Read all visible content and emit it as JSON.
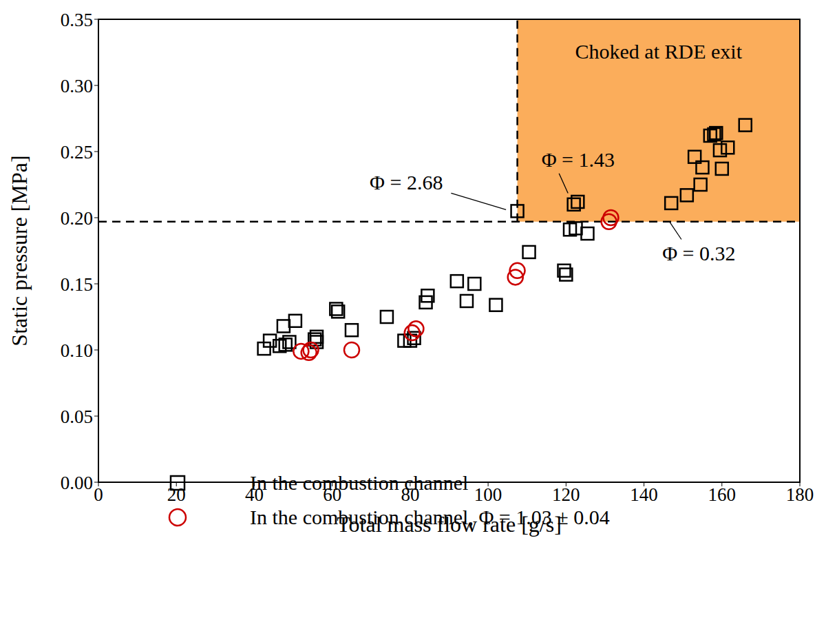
{
  "chart_data": {
    "type": "scatter",
    "x_label": "Total mass flow rate [g/s]",
    "y_label": "Static pressure [MPa]",
    "xlim": [
      0,
      180
    ],
    "xticks": [
      0,
      20,
      40,
      60,
      80,
      100,
      120,
      140,
      160,
      180
    ],
    "ylim": [
      0,
      0.35
    ],
    "yticks": [
      {
        "value": 0,
        "label": "0.00"
      },
      0.05,
      {
        "value": 0.1,
        "label": "0.10"
      },
      0.15,
      {
        "value": 0.2,
        "label": "0.20"
      },
      0.25,
      {
        "value": 0.3,
        "label": "0.30"
      },
      0.35
    ],
    "grid": false,
    "legend": "lower left",
    "series": [
      {
        "name": "In the combustion channel",
        "color": "#000000",
        "marker": "square",
        "x": [
          42.5,
          44,
          46.5,
          47.5,
          48,
          49,
          50.5,
          55.5,
          56,
          56,
          61,
          61.5,
          65,
          74,
          78.5,
          80,
          81,
          84,
          84.5,
          92,
          94.5,
          96.5,
          102,
          107.5,
          110.5,
          119.5,
          120,
          121,
          122,
          123,
          122.5,
          125.5,
          147,
          151,
          153,
          154.5,
          155,
          157,
          158,
          158.5,
          159.5,
          160,
          161.5,
          166
        ],
        "values": [
          0.101,
          0.107,
          0.103,
          0.118,
          0.104,
          0.106,
          0.122,
          0.108,
          0.11,
          0.106,
          0.131,
          0.129,
          0.115,
          0.125,
          0.107,
          0.107,
          0.109,
          0.136,
          0.141,
          0.152,
          0.137,
          0.15,
          0.134,
          0.205,
          0.174,
          0.16,
          0.157,
          0.191,
          0.21,
          0.212,
          0.192,
          0.188,
          0.211,
          0.217,
          0.246,
          0.225,
          0.238,
          0.262,
          0.263,
          0.264,
          0.251,
          0.237,
          0.253,
          0.27
        ]
      },
      {
        "name": "In the combustion channel, Φ = 1.03 ± 0.04",
        "color": "#cc0000",
        "marker": "circle",
        "x": [
          52,
          54,
          54.5,
          65,
          80.5,
          81.5,
          107,
          107.5,
          131,
          131.5
        ],
        "values": [
          0.099,
          0.098,
          0.1,
          0.1,
          0.113,
          0.116,
          0.155,
          0.16,
          0.197,
          0.2
        ]
      }
    ],
    "shaded_region": {
      "text": "Choked at RDE exit",
      "xlim": [
        107.5,
        180
      ],
      "ylim": [
        0.197,
        0.35
      ],
      "color": "#fbad5b"
    },
    "hlines": [
      0.197
    ],
    "vlines": [
      {
        "x": 107.5,
        "ylim": [
          0.197,
          0.35
        ]
      }
    ],
    "annotations": [
      {
        "text": "Φ = 2.68",
        "text_x": 79,
        "text_y": 0.2267,
        "line_x": [
          90.5,
          104.6
        ],
        "line_y": [
          0.2185,
          0.206
        ]
      },
      {
        "text": "Φ = 1.43",
        "text_x": 123.1,
        "text_y": 0.2439,
        "line_x": [
          118.2,
          120.5
        ],
        "line_y": [
          0.2335,
          0.2185
        ]
      },
      {
        "text": "Φ = 0.32",
        "text_x": 154.1,
        "text_y": 0.1732,
        "line_x": [
          149.6,
          146.5
        ],
        "line_y": [
          0.1836,
          0.1972
        ]
      }
    ]
  }
}
